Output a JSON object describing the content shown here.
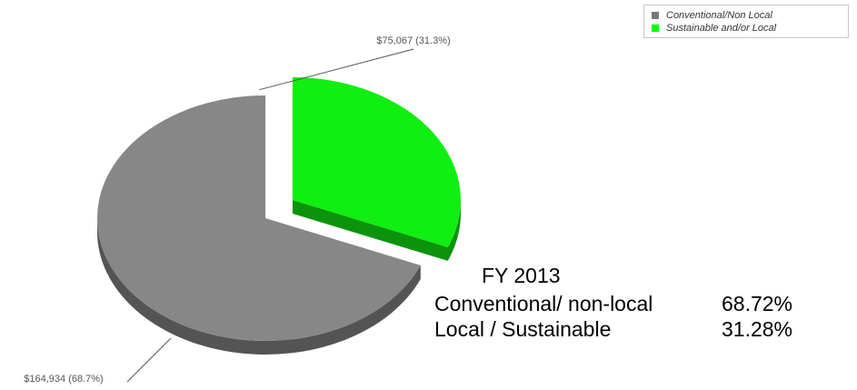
{
  "chart_data": {
    "type": "pie",
    "series": [
      {
        "name": "Conventional/Non Local",
        "value": 164934,
        "percent": 68.7,
        "label": "$164,934 (68.7%)",
        "color": "#878787",
        "exploded": false
      },
      {
        "name": "Sustainable and/or Local",
        "value": 75067,
        "percent": 31.3,
        "label": "$75,067 (31.3%)",
        "color": "#11ee11",
        "exploded": true
      }
    ],
    "legend_position": "top-right",
    "title": ""
  },
  "legend": {
    "items": [
      {
        "label": "Conventional/Non Local",
        "color": "#777777"
      },
      {
        "label": "Sustainable and/or Local",
        "color": "#00ff00"
      }
    ]
  },
  "summary": {
    "title": "FY 2013",
    "rows": [
      {
        "name": "Conventional/ non-local",
        "value": "68.72%"
      },
      {
        "name": "Local / Sustainable",
        "value": "31.28%"
      }
    ]
  }
}
